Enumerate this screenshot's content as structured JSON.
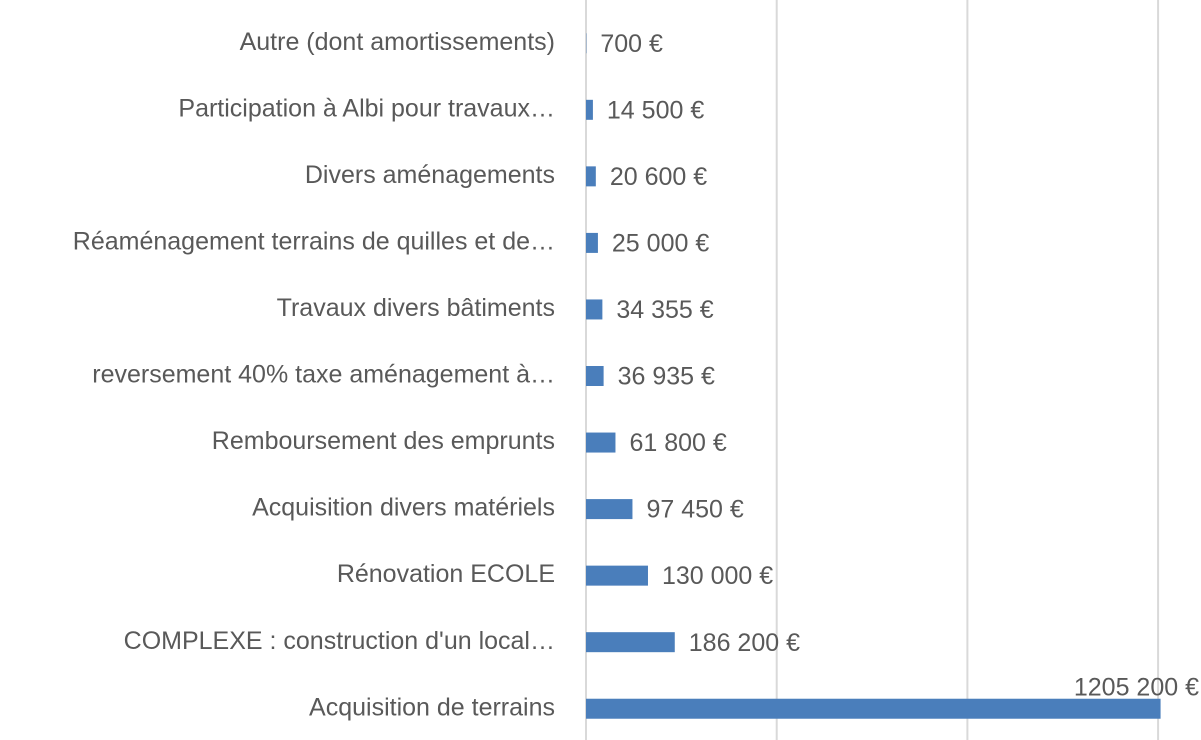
{
  "chart_data": {
    "type": "bar",
    "orientation": "horizontal",
    "categories": [
      "Autre (dont amortissements)",
      "Participation à Albi pour travaux…",
      "Divers aménagements",
      "Réaménagement terrains de quilles et de…",
      "Travaux divers bâtiments",
      "reversement 40% taxe aménagement à…",
      "Remboursement des emprunts",
      "Acquisition divers matériels",
      "Rénovation ECOLE",
      "COMPLEXE : construction d'un local…",
      "Acquisition de terrains"
    ],
    "values": [
      700,
      14500,
      20600,
      25000,
      34355,
      36935,
      61800,
      97450,
      130000,
      186200,
      1205200
    ],
    "value_labels": [
      "700 €",
      "14 500 €",
      "20 600 €",
      "25 000 €",
      "34 355 €",
      "36 935 €",
      "61 800 €",
      "97 450 €",
      "130 000 €",
      "186 200 €",
      "1205 200 €"
    ],
    "color": "#4a7ebb",
    "xlim": [
      0,
      1290000
    ],
    "xticks": [
      0,
      400000,
      800000,
      1200000
    ],
    "grid": true
  }
}
